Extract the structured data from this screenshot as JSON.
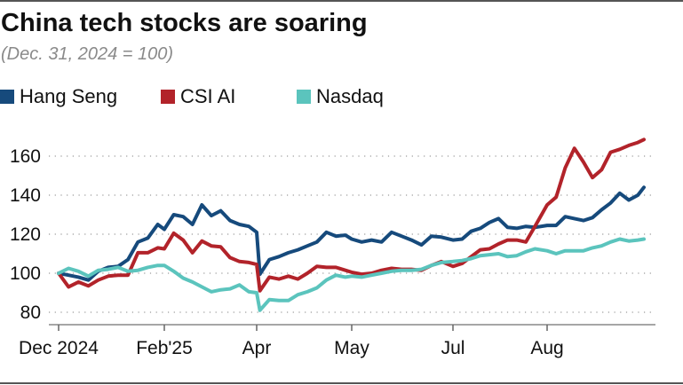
{
  "chart_data": {
    "type": "line",
    "title": "China tech stocks are soaring",
    "subtitle": "(Dec. 31, 2024 = 100)",
    "xlabel": "",
    "ylabel": "",
    "ylim": [
      75,
      175
    ],
    "yticks": [
      80,
      100,
      120,
      140,
      160
    ],
    "xticks": [
      {
        "date": "2024-12-31",
        "label": "Dec 2024"
      },
      {
        "date": "2025-02-01",
        "label": "Feb'25"
      },
      {
        "date": "2025-04-01",
        "label": "Apr"
      },
      {
        "date": "2025-05-01",
        "label": "May"
      },
      {
        "date": "2025-07-01",
        "label": "Jul"
      },
      {
        "date": "2025-08-01",
        "label": "Aug"
      }
    ],
    "grid": "horizontal dotted",
    "legend_position": "top-left",
    "x": [
      "2024-12-31",
      "2025-01-03",
      "2025-01-06",
      "2025-01-09",
      "2025-01-12",
      "2025-01-15",
      "2025-01-18",
      "2025-01-21",
      "2025-01-24",
      "2025-01-27",
      "2025-01-30",
      "2025-02-01",
      "2025-02-07",
      "2025-02-13",
      "2025-02-19",
      "2025-02-25",
      "2025-03-03",
      "2025-03-09",
      "2025-03-15",
      "2025-03-21",
      "2025-03-27",
      "2025-04-01",
      "2025-04-02",
      "2025-04-05",
      "2025-04-08",
      "2025-04-11",
      "2025-04-14",
      "2025-04-17",
      "2025-04-20",
      "2025-04-23",
      "2025-04-26",
      "2025-04-29",
      "2025-05-01",
      "2025-05-07",
      "2025-05-13",
      "2025-05-19",
      "2025-05-25",
      "2025-05-31",
      "2025-06-06",
      "2025-06-12",
      "2025-06-18",
      "2025-06-24",
      "2025-07-01",
      "2025-07-04",
      "2025-07-07",
      "2025-07-10",
      "2025-07-13",
      "2025-07-16",
      "2025-07-19",
      "2025-07-22",
      "2025-07-25",
      "2025-07-28",
      "2025-08-01",
      "2025-08-04",
      "2025-08-07",
      "2025-08-10",
      "2025-08-13",
      "2025-08-16",
      "2025-08-19",
      "2025-08-22",
      "2025-08-25",
      "2025-08-28",
      "2025-08-31",
      "2025-09-02"
    ],
    "series": [
      {
        "name": "Hang Seng",
        "color": "#164a7c",
        "values": [
          100,
          99,
          98,
          96.5,
          101,
          103,
          103.5,
          107,
          116,
          118,
          125,
          122.5,
          130,
          129,
          125,
          135,
          129.5,
          132,
          127,
          125,
          124,
          121,
          99.5,
          107,
          108.5,
          110.5,
          112,
          114,
          116,
          121,
          119,
          119.5,
          117.5,
          116,
          117,
          116,
          121,
          119,
          117,
          114.5,
          119,
          118.5,
          117,
          117.5,
          121.5,
          123,
          126,
          128,
          123.5,
          123,
          124,
          123.5,
          124.5,
          124.5,
          129,
          128,
          127,
          128.5,
          132.5,
          136,
          141,
          137.5,
          140,
          144
        ]
      },
      {
        "name": "CSI AI",
        "color": "#b2232a",
        "values": [
          100,
          93,
          95.5,
          93.5,
          96.5,
          98.5,
          99,
          99,
          110.5,
          110.5,
          113,
          112.5,
          120.5,
          117,
          110.5,
          116.5,
          114,
          113.5,
          108,
          106,
          105.5,
          104.5,
          91,
          98,
          97,
          98.5,
          97,
          100,
          103.5,
          103,
          103,
          101.5,
          100.5,
          99.5,
          100,
          101.5,
          102.5,
          102,
          102,
          101.5,
          104,
          106,
          103.5,
          105,
          108.5,
          112,
          112.5,
          115,
          117,
          117,
          116,
          124,
          135,
          139,
          154,
          164,
          157,
          149,
          153,
          162,
          163.5,
          165.5,
          167,
          168.5
        ]
      },
      {
        "name": "Nasdaq",
        "color": "#5bc4bd",
        "values": [
          100,
          102.5,
          101,
          98.5,
          101.5,
          102,
          103,
          101,
          101.5,
          103,
          104,
          104,
          101,
          97.5,
          95.5,
          93,
          90.5,
          91.5,
          92,
          94,
          90.5,
          90,
          81,
          86.5,
          86,
          86,
          89,
          90.5,
          92.5,
          96.5,
          99,
          98,
          98.5,
          98,
          99,
          100,
          101,
          101.5,
          101.5,
          102,
          104,
          105.5,
          106,
          106.5,
          107.5,
          109,
          109.5,
          110,
          108.5,
          109,
          111,
          112.5,
          111.5,
          110,
          111.5,
          111.5,
          111.5,
          113,
          114,
          116,
          117.5,
          116.5,
          117,
          117.5
        ]
      }
    ]
  }
}
